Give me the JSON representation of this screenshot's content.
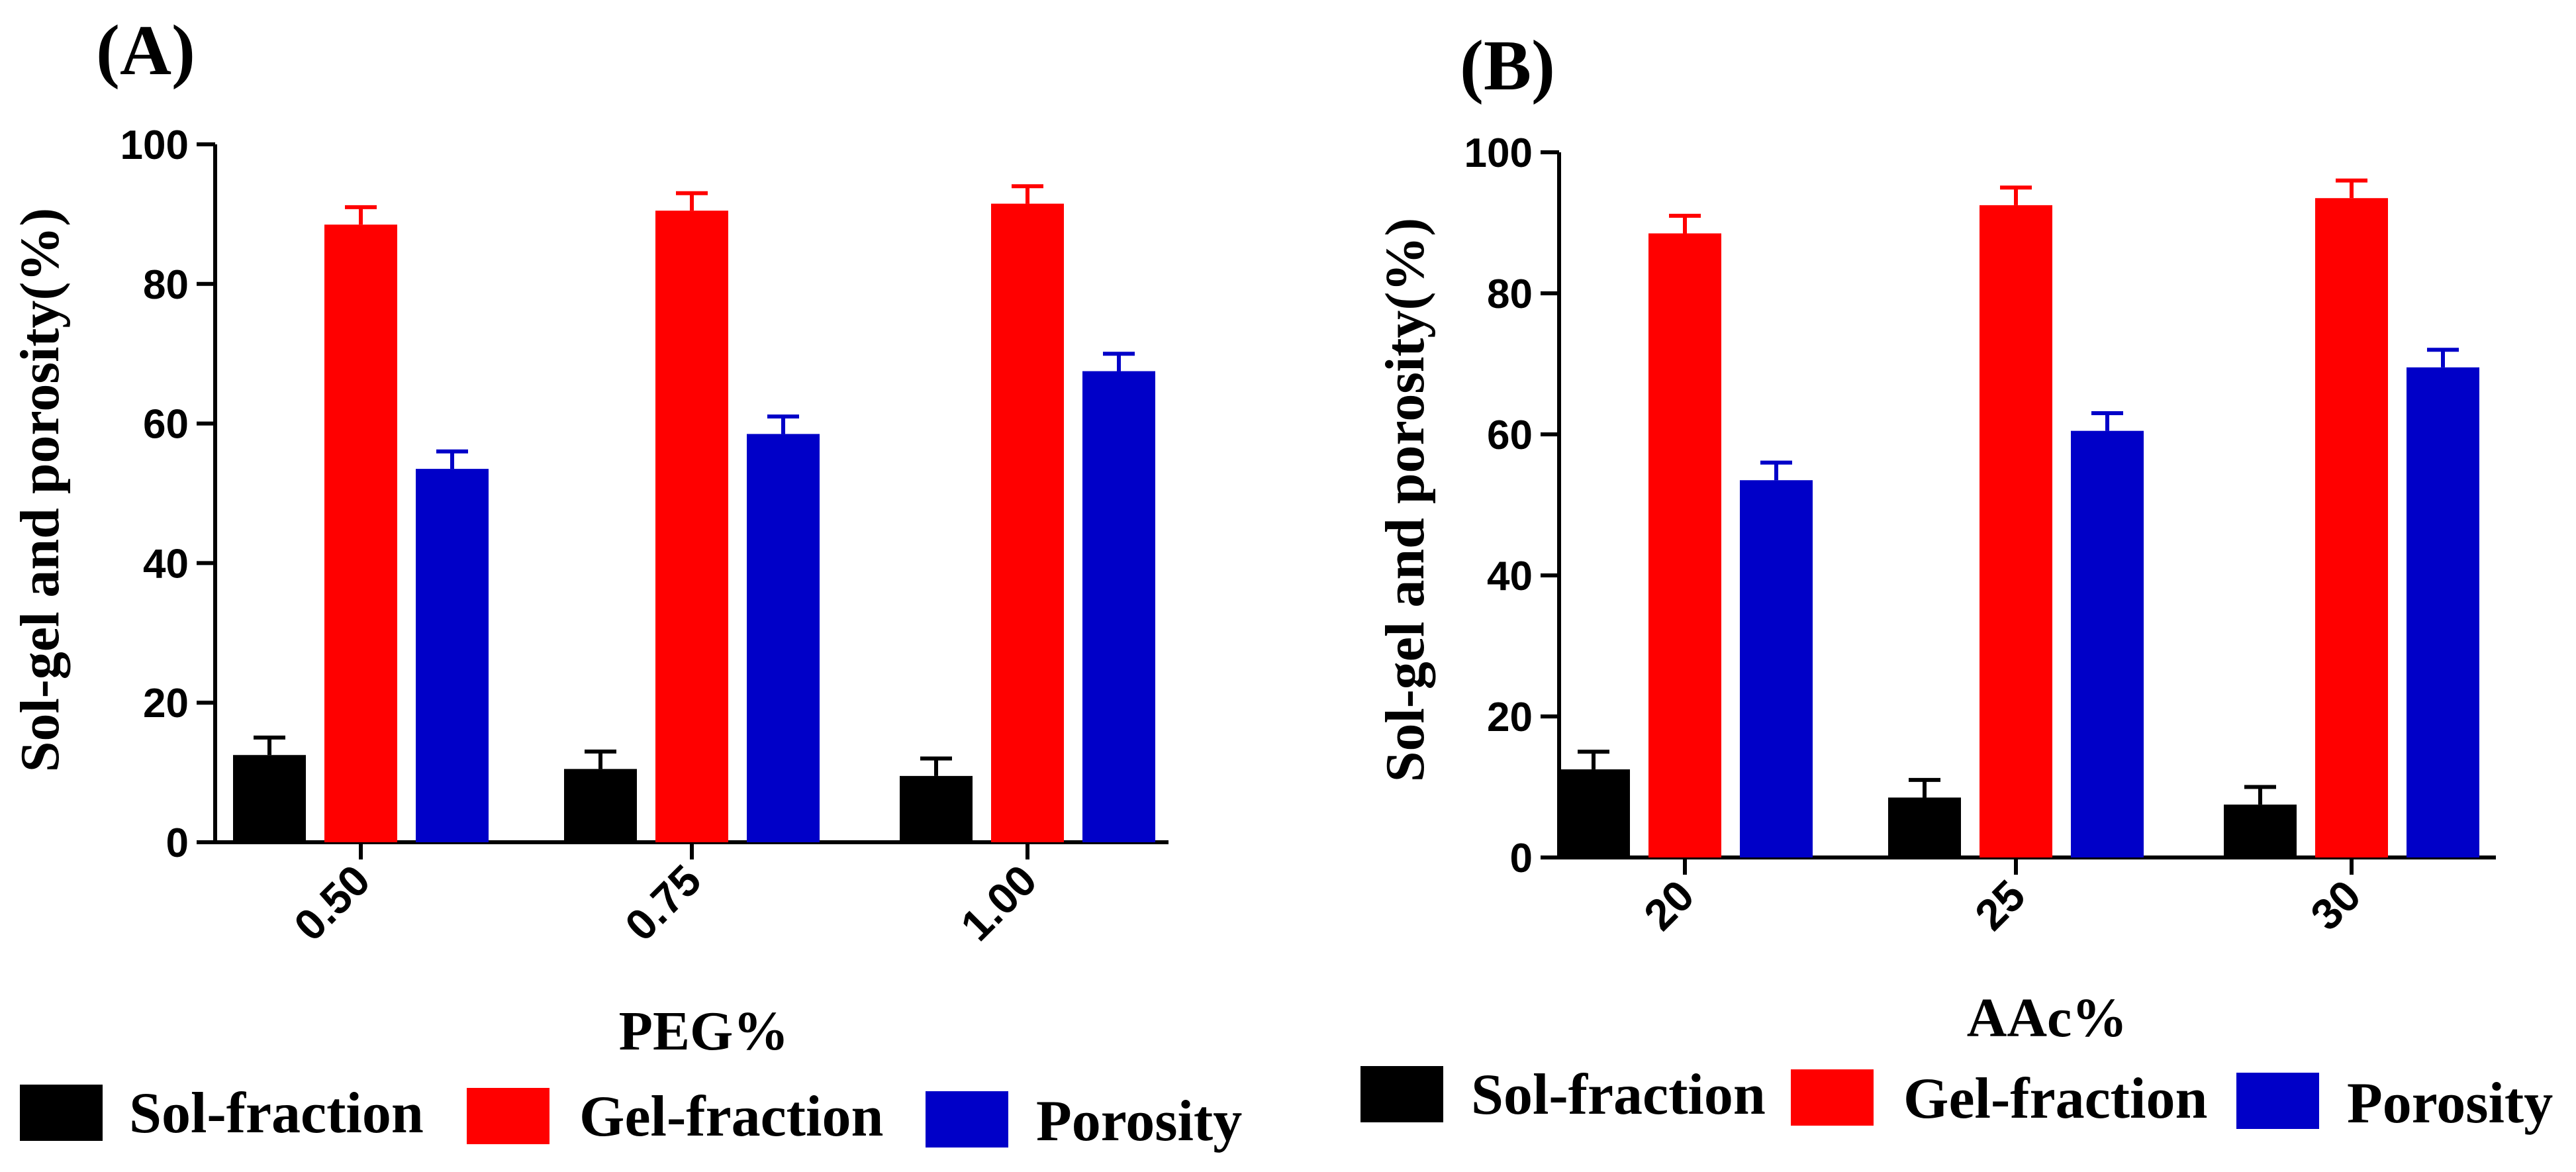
{
  "figure": {
    "series_colors": {
      "Sol-fraction": "#000000",
      "Gel-fraction": "#ff0000",
      "Porosity": "#0000c8"
    }
  },
  "chart_data": [
    {
      "panel": "(A)",
      "type": "bar",
      "categories": [
        "0.50",
        "0.75",
        "1.00"
      ],
      "series": [
        {
          "name": "Sol-fraction",
          "color": "#000000",
          "values": [
            12.5,
            10.5,
            9.5
          ],
          "errors": [
            2.5,
            2.5,
            2.5
          ]
        },
        {
          "name": "Gel-fraction",
          "color": "#ff0000",
          "values": [
            88.5,
            90.5,
            91.5
          ],
          "errors": [
            2.5,
            2.5,
            2.5
          ]
        },
        {
          "name": "Porosity",
          "color": "#0000c8",
          "values": [
            53.5,
            58.5,
            67.5
          ],
          "errors": [
            2.5,
            2.5,
            2.5
          ]
        }
      ],
      "xlabel": "PEG%",
      "ylabel": "Sol-gel and porosity(%)",
      "ylim": [
        0,
        100
      ],
      "yticks": [
        0,
        20,
        40,
        60,
        80,
        100
      ],
      "legend": [
        "Sol-fraction",
        "Gel-fraction",
        "Porosity"
      ]
    },
    {
      "panel": "(B)",
      "type": "bar",
      "categories": [
        "20",
        "25",
        "30"
      ],
      "series": [
        {
          "name": "Sol-fraction",
          "color": "#000000",
          "values": [
            12.5,
            8.5,
            7.5
          ],
          "errors": [
            2.5,
            2.5,
            2.5
          ]
        },
        {
          "name": "Gel-fraction",
          "color": "#ff0000",
          "values": [
            88.5,
            92.5,
            93.5
          ],
          "errors": [
            2.5,
            2.5,
            2.5
          ]
        },
        {
          "name": "Porosity",
          "color": "#0000c8",
          "values": [
            53.5,
            60.5,
            69.5
          ],
          "errors": [
            2.5,
            2.5,
            2.5
          ]
        }
      ],
      "xlabel": "AAc%",
      "ylabel": "Sol-gel and porosity(%)",
      "ylim": [
        0,
        100
      ],
      "yticks": [
        0,
        20,
        40,
        60,
        80,
        100
      ],
      "legend": [
        "Sol-fraction",
        "Gel-fraction",
        "Porosity"
      ]
    }
  ]
}
